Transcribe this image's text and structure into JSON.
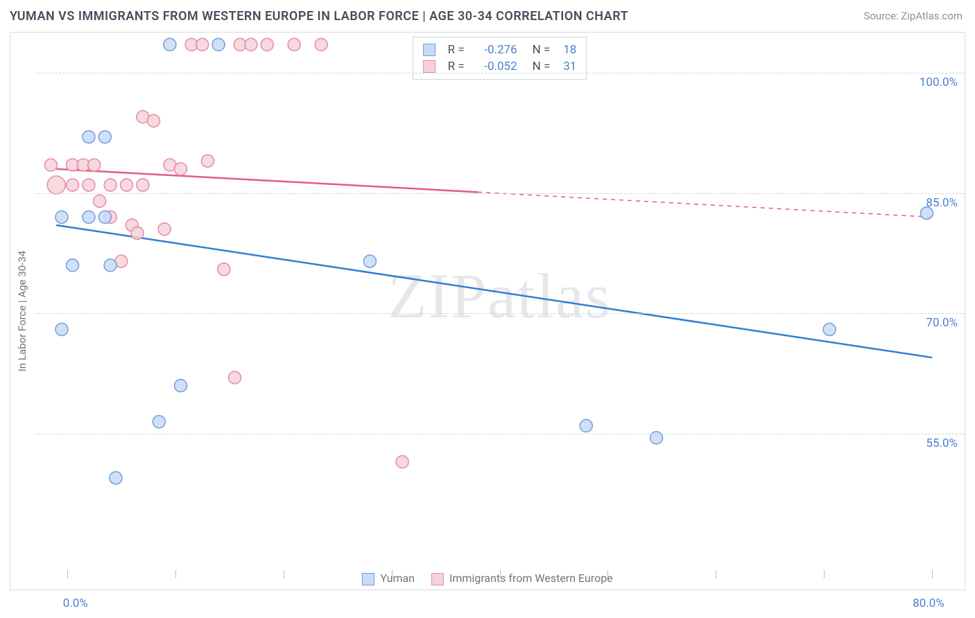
{
  "title": "YUMAN VS IMMIGRANTS FROM WESTERN EUROPE IN LABOR FORCE | AGE 30-34 CORRELATION CHART",
  "source": "Source: ZipAtlas.com",
  "watermark": "ZIPatlas",
  "ylabel": "In Labor Force | Age 30-34",
  "chart": {
    "type": "scatter-with-regression",
    "background_color": "#ffffff",
    "grid_color": "#cfd3d8",
    "axis_label_color": "#4b7fd1",
    "text_color": "#6d7580",
    "xlim": [
      -3,
      83
    ],
    "ylim": [
      38,
      105
    ],
    "yticks": [
      55.0,
      70.0,
      85.0,
      100.0
    ],
    "ytick_labels": [
      "55.0%",
      "70.0%",
      "85.0%",
      "100.0%"
    ],
    "xticks": [
      0,
      10,
      20,
      30,
      40,
      50,
      60,
      70,
      80
    ],
    "xtick_labels": {
      "0": "0.0%",
      "80": "80.0%"
    },
    "marker_radius": 9,
    "marker_stroke_width": 1.5,
    "line_width": 2.5,
    "series": [
      {
        "id": "yuman",
        "label": "Yuman",
        "color_fill": "#c9dbf5",
        "color_stroke": "#6b9fe0",
        "line_color": "#2f7fd1",
        "R": "-0.276",
        "N": "18",
        "regression": {
          "x1": -1,
          "y1": 81.0,
          "x2": 80,
          "y2": 64.5,
          "solid_until_x": 80
        },
        "points": [
          {
            "x": 2.0,
            "y": 92.0
          },
          {
            "x": 3.5,
            "y": 92.0
          },
          {
            "x": -0.5,
            "y": 82.0
          },
          {
            "x": 2.0,
            "y": 82.0
          },
          {
            "x": 3.5,
            "y": 82.0
          },
          {
            "x": 0.5,
            "y": 76.0
          },
          {
            "x": -0.5,
            "y": 68.0
          },
          {
            "x": 4.0,
            "y": 76.0
          },
          {
            "x": 10.5,
            "y": 61.0
          },
          {
            "x": 8.5,
            "y": 56.5
          },
          {
            "x": 4.5,
            "y": 49.5
          },
          {
            "x": 9.5,
            "y": 103.5
          },
          {
            "x": 14.0,
            "y": 103.5
          },
          {
            "x": 28.0,
            "y": 76.5
          },
          {
            "x": 48.0,
            "y": 56.0
          },
          {
            "x": 54.5,
            "y": 54.5
          },
          {
            "x": 70.5,
            "y": 68.0
          },
          {
            "x": 79.5,
            "y": 82.5
          }
        ]
      },
      {
        "id": "immigrants",
        "label": "Immigrants from Western Europe",
        "color_fill": "#f6d2db",
        "color_stroke": "#e68aa5",
        "line_color": "#e35a8a",
        "R": "-0.052",
        "N": "31",
        "regression": {
          "x1": -1,
          "y1": 88.0,
          "x2": 80,
          "y2": 82.0,
          "solid_until_x": 38
        },
        "points": [
          {
            "x": -1.5,
            "y": 88.5
          },
          {
            "x": -1.0,
            "y": 86.0,
            "r": 13
          },
          {
            "x": 0.5,
            "y": 88.5
          },
          {
            "x": 1.5,
            "y": 88.5
          },
          {
            "x": 2.5,
            "y": 88.5
          },
          {
            "x": 0.5,
            "y": 86.0
          },
          {
            "x": 2.0,
            "y": 86.0
          },
          {
            "x": 4.0,
            "y": 86.0
          },
          {
            "x": 3.0,
            "y": 84.0
          },
          {
            "x": 5.5,
            "y": 86.0
          },
          {
            "x": 7.0,
            "y": 86.0
          },
          {
            "x": 4.0,
            "y": 82.0
          },
          {
            "x": 6.0,
            "y": 81.0
          },
          {
            "x": 7.0,
            "y": 94.5
          },
          {
            "x": 8.0,
            "y": 94.0
          },
          {
            "x": 9.5,
            "y": 88.5
          },
          {
            "x": 6.5,
            "y": 80.0
          },
          {
            "x": 9.0,
            "y": 80.5
          },
          {
            "x": 5.0,
            "y": 76.5
          },
          {
            "x": 11.5,
            "y": 103.5
          },
          {
            "x": 12.5,
            "y": 103.5
          },
          {
            "x": 13.0,
            "y": 89.0
          },
          {
            "x": 16.0,
            "y": 103.5
          },
          {
            "x": 17.0,
            "y": 103.5
          },
          {
            "x": 18.5,
            "y": 103.5
          },
          {
            "x": 21.0,
            "y": 103.5
          },
          {
            "x": 23.5,
            "y": 103.5
          },
          {
            "x": 14.5,
            "y": 75.5
          },
          {
            "x": 15.5,
            "y": 62.0
          },
          {
            "x": 31.0,
            "y": 51.5
          },
          {
            "x": 10.5,
            "y": 88.0
          }
        ]
      }
    ]
  },
  "corr_legend": {
    "rows": [
      {
        "swatch_fill": "#c9dbf5",
        "swatch_stroke": "#6b9fe0",
        "r_label": "R =",
        "r_val": "-0.276",
        "n_label": "N =",
        "n_val": "18"
      },
      {
        "swatch_fill": "#f6d2db",
        "swatch_stroke": "#e68aa5",
        "r_label": "R =",
        "r_val": "-0.052",
        "n_label": "N =",
        "n_val": "31"
      }
    ]
  }
}
